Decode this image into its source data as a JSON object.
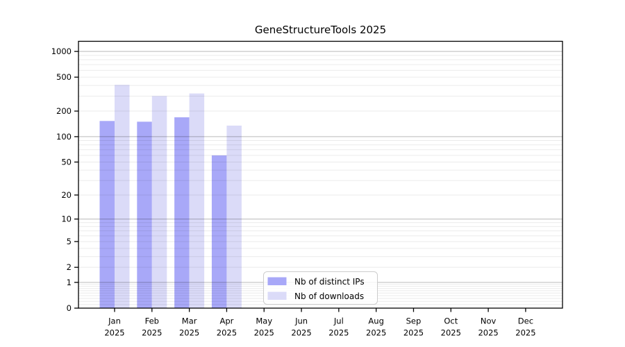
{
  "chart_data": {
    "type": "bar",
    "title": "GeneStructureTools 2025",
    "categories": [
      "Jan",
      "Feb",
      "Mar",
      "Apr",
      "May",
      "Jun",
      "Jul",
      "Aug",
      "Sep",
      "Oct",
      "Nov",
      "Dec"
    ],
    "category_year": "2025",
    "series": [
      {
        "name": "Nb of distinct IPs",
        "color": "#a8a8f8",
        "values": [
          153,
          150,
          169,
          60,
          0,
          0,
          0,
          0,
          0,
          0,
          0,
          0
        ]
      },
      {
        "name": "Nb of downloads",
        "color": "#dbdbf8",
        "values": [
          406,
          300,
          322,
          135,
          0,
          0,
          0,
          0,
          0,
          0,
          0,
          0
        ]
      }
    ],
    "yscale": "log1p",
    "yticks": [
      0,
      1,
      2,
      5,
      10,
      20,
      50,
      100,
      200,
      500,
      1000
    ],
    "ylim": [
      0,
      1300
    ],
    "grid": "on",
    "legend_position": "lower center",
    "axis_color": "#000000",
    "grid_minor_color": "rgba(0,0,0,0.08)",
    "grid_major_color": "rgba(0,0,0,0.22)",
    "legend_border_color": "#cccccc"
  }
}
